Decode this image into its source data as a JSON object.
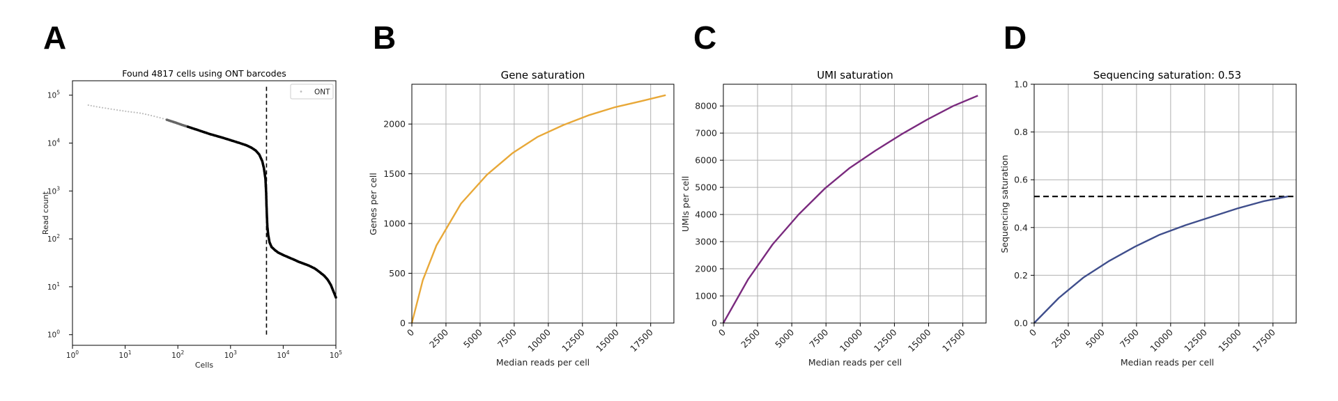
{
  "panels": [
    {
      "letter": "A",
      "chart_data": {
        "type": "scatter",
        "title": "Found 4817 cells using ONT barcodes",
        "xlabel": "Cells",
        "ylabel": "Read count",
        "xscale": "log",
        "yscale": "log",
        "xlim": [
          1,
          100000
        ],
        "ylim": [
          0.6,
          200000
        ],
        "xticks": [
          1,
          10,
          100,
          1000,
          10000,
          100000
        ],
        "xticklabels": [
          "10^0",
          "10^1",
          "10^2",
          "10^3",
          "10^4",
          "10^5"
        ],
        "yticks": [
          1,
          10,
          100,
          1000,
          10000,
          100000
        ],
        "yticklabels": [
          "10^0",
          "10^1",
          "10^2",
          "10^3",
          "10^4",
          "10^5"
        ],
        "legend": {
          "entries": [
            "ONT"
          ],
          "placement": "top-right"
        },
        "threshold_x": 4817,
        "threshold_y_range": [
          1,
          150000
        ],
        "series": [
          {
            "name": "ONT",
            "x": [
              2,
              3,
              5,
              8,
              12,
              20,
              30,
              50,
              80,
              120,
              200,
              400,
              700,
              1000,
              1500,
              2000,
              2500,
              3000,
              3500,
              4000,
              4300,
              4600,
              4750,
              4817,
              4900,
              5000,
              5200,
              5500,
              6000,
              7000,
              8000,
              10000,
              15000,
              20000,
              30000,
              40000,
              50000,
              60000,
              70000,
              80000,
              90000,
              100000
            ],
            "y": [
              62000,
              57000,
              52000,
              48000,
              45000,
              42000,
              38000,
              33000,
              28000,
              24000,
              20000,
              15500,
              13000,
              11500,
              10000,
              9000,
              8000,
              7000,
              5800,
              4200,
              3000,
              1800,
              900,
              500,
              300,
              180,
              120,
              85,
              68,
              58,
              52,
              46,
              38,
              33,
              28,
              24,
              20,
              17,
              14,
              11,
              8,
              6
            ]
          }
        ]
      }
    },
    {
      "letter": "B",
      "chart_data": {
        "type": "line",
        "title": "Gene saturation",
        "xlabel": "Median reads per cell",
        "ylabel": "Genes per cell",
        "xlim": [
          0,
          19200
        ],
        "ylim": [
          0,
          2400
        ],
        "xticks": [
          0,
          2500,
          5000,
          7500,
          10000,
          12500,
          15000,
          17500
        ],
        "yticks": [
          0,
          500,
          1000,
          1500,
          2000
        ],
        "grid": true,
        "color": "#E8A838",
        "series": [
          {
            "x": [
              0,
              800,
              1800,
              3600,
              5500,
              7400,
              9200,
              11100,
              13000,
              14900,
              16800,
              18600
            ],
            "y": [
              0,
              430,
              780,
              1200,
              1490,
              1710,
              1870,
              1990,
              2090,
              2170,
              2230,
              2290
            ]
          }
        ]
      }
    },
    {
      "letter": "C",
      "chart_data": {
        "type": "line",
        "title": "UMI saturation",
        "xlabel": "Median reads per cell",
        "ylabel": "UMIs per cell",
        "xlim": [
          0,
          19200
        ],
        "ylim": [
          0,
          8800
        ],
        "xticks": [
          0,
          2500,
          5000,
          7500,
          10000,
          12500,
          15000,
          17500
        ],
        "yticks": [
          0,
          1000,
          2000,
          3000,
          4000,
          5000,
          6000,
          7000,
          8000
        ],
        "grid": true,
        "color": "#7A2A7E",
        "series": [
          {
            "x": [
              0,
              1800,
              3600,
              5500,
              7400,
              9200,
              11100,
              13000,
              14900,
              16800,
              18600
            ],
            "y": [
              0,
              1600,
              2900,
              4000,
              4950,
              5700,
              6350,
              6950,
              7500,
              8000,
              8380
            ]
          }
        ]
      }
    },
    {
      "letter": "D",
      "chart_data": {
        "type": "line",
        "title": "Sequencing saturation: 0.53",
        "xlabel": "Median reads per cell",
        "ylabel": "Sequencing saturation",
        "xlim": [
          0,
          19200
        ],
        "ylim": [
          0,
          1.0
        ],
        "xticks": [
          0,
          2500,
          5000,
          7500,
          10000,
          12500,
          15000,
          17500
        ],
        "yticks": [
          0.0,
          0.2,
          0.4,
          0.6,
          0.8,
          1.0
        ],
        "yticklabels": [
          "0.0",
          "0.2",
          "0.4",
          "0.6",
          "0.8",
          "1.0"
        ],
        "grid": true,
        "color": "#3F4E8C",
        "hline": 0.53,
        "series": [
          {
            "x": [
              0,
              1800,
              3600,
              5500,
              7400,
              9200,
              11100,
              13000,
              14900,
              16800,
              18600
            ],
            "y": [
              0,
              0.105,
              0.19,
              0.26,
              0.32,
              0.37,
              0.41,
              0.445,
              0.48,
              0.51,
              0.53
            ]
          }
        ]
      }
    }
  ]
}
